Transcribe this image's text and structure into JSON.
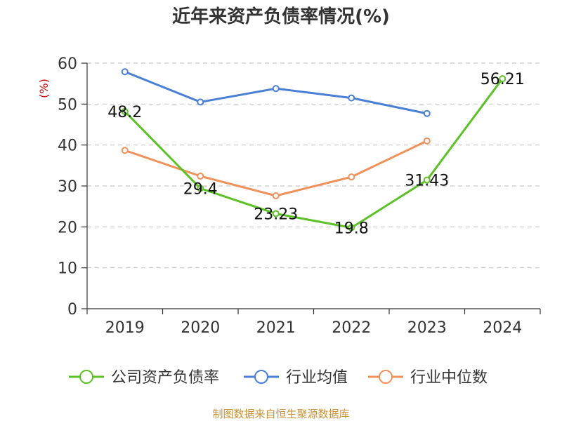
{
  "chart_data": {
    "type": "line",
    "title": "近年来资产负债率情况(%)",
    "ylabel": "(%)",
    "xlabel": "",
    "categories": [
      "2019",
      "2020",
      "2021",
      "2022",
      "2023",
      "2024"
    ],
    "ylim": [
      0,
      60
    ],
    "yticks": [
      0,
      10,
      20,
      30,
      40,
      50,
      60
    ],
    "grid": "horizontal dashed",
    "legend_position": "bottom",
    "series": [
      {
        "name": "公司资产负债率",
        "color": "#5cc126",
        "values": [
          48.2,
          29.4,
          23.23,
          19.8,
          31.43,
          56.21
        ],
        "labels": [
          "48.2",
          "29.4",
          "23.23",
          "19.8",
          "31.43",
          "56.21"
        ]
      },
      {
        "name": "行业均值",
        "color": "#4a7fd6",
        "values": [
          57.9,
          50.5,
          53.8,
          51.5,
          47.7,
          null
        ]
      },
      {
        "name": "行业中位数",
        "color": "#f0915a",
        "values": [
          38.7,
          32.4,
          27.6,
          32.2,
          41.0,
          null
        ]
      }
    ]
  },
  "source": "制图数据来自恒生聚源数据库"
}
